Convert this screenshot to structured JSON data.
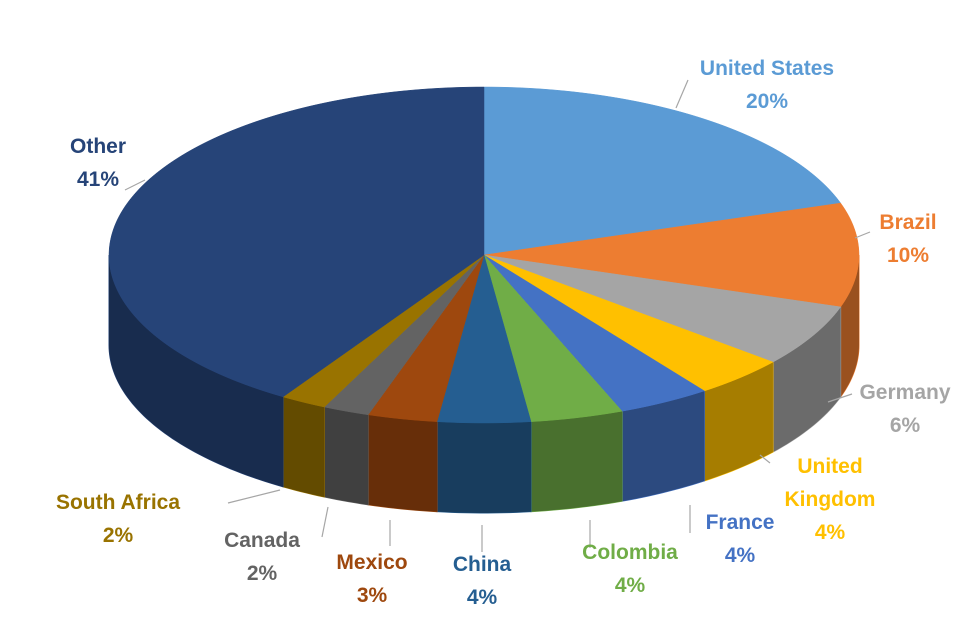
{
  "chart_data": {
    "type": "pie3d",
    "categories": [
      "United States",
      "Brazil",
      "Germany",
      "United Kingdom",
      "France",
      "Colombia",
      "China",
      "Mexico",
      "Canada",
      "South Africa",
      "Other"
    ],
    "values": [
      20,
      10,
      6,
      4,
      4,
      4,
      4,
      3,
      2,
      2,
      41
    ],
    "value_labels": [
      "20%",
      "10%",
      "6%",
      "4%",
      "4%",
      "4%",
      "4%",
      "3%",
      "2%",
      "2%",
      "41%"
    ],
    "colors": [
      "#5b9bd5",
      "#ed7d31",
      "#a5a5a5",
      "#ffc000",
      "#4472c4",
      "#70ad47",
      "#255e91",
      "#9e480e",
      "#636363",
      "#997300",
      "#264478"
    ]
  }
}
